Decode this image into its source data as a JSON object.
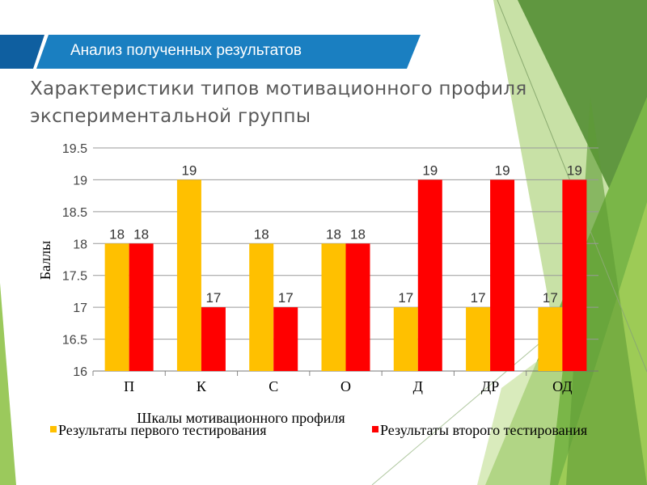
{
  "header": {
    "banner": "Анализ полученных результатов",
    "title_line1": "Характеристики типов мотивационного профиля",
    "title_line2": "экспериментальной группы"
  },
  "colors": {
    "banner": "#1a7fc1",
    "banner_dark": "#0f5fa0",
    "series1": "#ffc000",
    "series2": "#ff0000",
    "green": "#7ab648"
  },
  "chart_data": {
    "type": "bar",
    "title": "",
    "xlabel": "Шкалы мотивационного профиля",
    "ylabel": "Баллы",
    "ylim": [
      16,
      19.5
    ],
    "yticks": [
      "16",
      "16.5",
      "17",
      "17.5",
      "18",
      "18.5",
      "19",
      "19.5"
    ],
    "grid": true,
    "legend_position": "bottom",
    "categories": [
      "П",
      "К",
      "С",
      "О",
      "Д",
      "ДР",
      "ОД"
    ],
    "series": [
      {
        "name": "Результаты первого тестирования",
        "values": [
          18,
          19,
          18,
          18,
          17,
          17,
          17
        ]
      },
      {
        "name": "Результаты второго тестирования",
        "values": [
          18,
          17,
          17,
          18,
          19,
          19,
          19
        ]
      }
    ]
  }
}
